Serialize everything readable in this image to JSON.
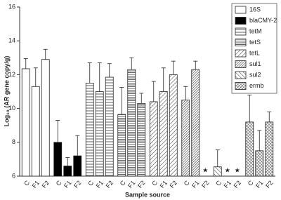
{
  "chart_data": {
    "type": "bar",
    "y_label": "Log₁₀ (AR gene copy/g)",
    "x_label": "Sample source",
    "categories": [
      "C",
      "F1",
      "F2"
    ],
    "missing_marker": "★",
    "ylim": [
      6,
      16
    ],
    "yticks": [
      6,
      8,
      10,
      12,
      14,
      16
    ],
    "series": [
      {
        "name": "16S",
        "color": "#ffffff",
        "pattern": "solid",
        "values": [
          12.35,
          11.3,
          12.9
        ],
        "errors": [
          0.6,
          1.1,
          0.6
        ]
      },
      {
        "name": "blaCMY-2",
        "color": "#000000",
        "pattern": "solid",
        "values": [
          8.0,
          6.6,
          7.2
        ],
        "errors": [
          1.3,
          0.5,
          1.2
        ]
      },
      {
        "name": "tetM",
        "color": "#333333",
        "pattern": "hlines",
        "values": [
          11.5,
          11.0,
          11.85
        ],
        "errors": [
          1.2,
          1.7,
          0.8
        ]
      },
      {
        "name": "tetS",
        "color": "#333333",
        "pattern": "hlines-dense",
        "values": [
          9.65,
          12.3,
          10.3
        ],
        "errors": [
          1.6,
          0.7,
          0.6
        ]
      },
      {
        "name": "tetL",
        "color": "#333333",
        "pattern": "diag",
        "values": [
          10.4,
          11.0,
          12.0
        ],
        "errors": [
          1.2,
          1.4,
          0.8
        ]
      },
      {
        "name": "sul1",
        "color": "#333333",
        "pattern": "diag-dense",
        "values": [
          10.5,
          12.3,
          null
        ],
        "errors": [
          0.8,
          0.5,
          null
        ]
      },
      {
        "name": "sul2",
        "color": "#333333",
        "pattern": "diag-wide",
        "values": [
          6.55,
          null,
          null
        ],
        "errors": [
          1.0,
          null,
          null
        ]
      },
      {
        "name": "ermb",
        "color": "#333333",
        "pattern": "cross",
        "values": [
          9.2,
          7.5,
          9.2
        ],
        "errors": [
          1.6,
          1.2,
          0.6
        ]
      }
    ]
  }
}
